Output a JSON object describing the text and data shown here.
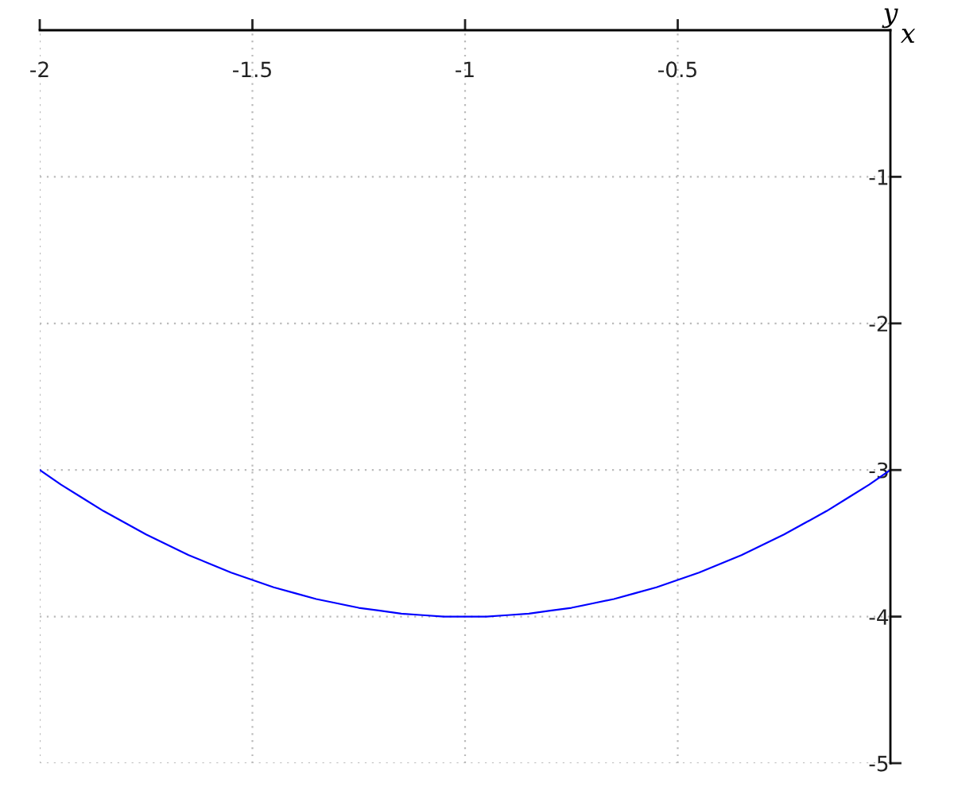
{
  "chart_data": {
    "type": "line",
    "xlabel": "x",
    "ylabel": "y",
    "x": [
      -2,
      -1.95,
      -1.9,
      -1.85,
      -1.8,
      -1.75,
      -1.7,
      -1.65,
      -1.6,
      -1.55,
      -1.5,
      -1.45,
      -1.4,
      -1.35,
      -1.3,
      -1.25,
      -1.2,
      -1.15,
      -1.1,
      -1.05,
      -1,
      -0.95,
      -0.9,
      -0.85,
      -0.8,
      -0.75,
      -0.7,
      -0.65,
      -0.6,
      -0.55,
      -0.5,
      -0.45,
      -0.4,
      -0.35,
      -0.3,
      -0.25,
      -0.2,
      -0.15,
      -0.1,
      -0.05,
      0
    ],
    "series": [
      {
        "color": "#0000ff",
        "values": [
          -3,
          -3.1,
          -3.19,
          -3.28,
          -3.36,
          -3.44,
          -3.51,
          -3.58,
          -3.64,
          -3.7,
          -3.75,
          -3.8,
          -3.84,
          -3.88,
          -3.91,
          -3.94,
          -3.96,
          -3.98,
          -3.99,
          -4,
          -4,
          -4,
          -3.99,
          -3.98,
          -3.96,
          -3.94,
          -3.91,
          -3.88,
          -3.84,
          -3.8,
          -3.75,
          -3.7,
          -3.64,
          -3.58,
          -3.51,
          -3.44,
          -3.36,
          -3.28,
          -3.19,
          -3.1,
          -3
        ]
      }
    ],
    "xlim": [
      -2,
      0
    ],
    "ylim": [
      -5,
      0
    ],
    "xticks": [
      -2,
      -1.5,
      -1,
      -0.5
    ],
    "yticks": [
      -1,
      -2,
      -3,
      -4,
      -5
    ],
    "grid": true,
    "marker": "none",
    "line_style": "solid"
  }
}
